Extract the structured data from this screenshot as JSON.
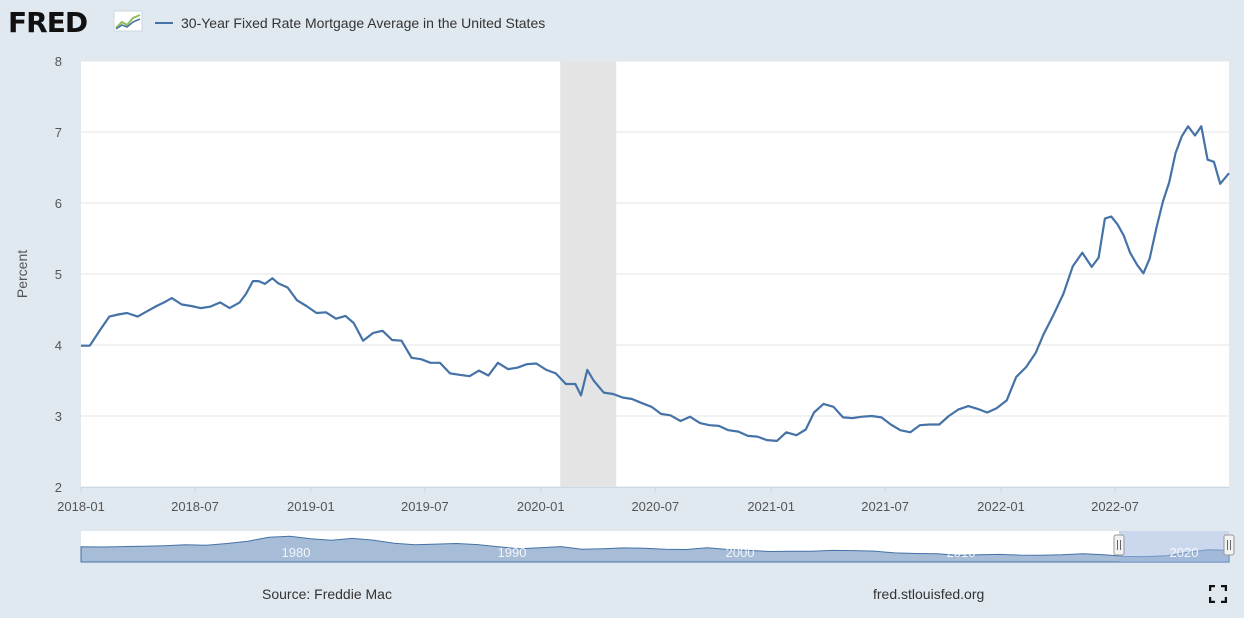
{
  "header": {
    "logo": "FRED",
    "logo_icon": "line-graph-icon",
    "legend_label": "30-Year Fixed Rate Mortgage Average in the United States"
  },
  "colors": {
    "series": "#4572a7",
    "plot_bg": "#ffffff",
    "page_bg": "#e1e9f0",
    "recession": "#e4e4e4",
    "navigator_fill": "#a7bcd6",
    "navigator_mask": "#9fb6df"
  },
  "chart_data": {
    "type": "line",
    "title": "30-Year Fixed Rate Mortgage Average in the United States",
    "xlabel": "",
    "ylabel": "Percent",
    "ylim": [
      2,
      8
    ],
    "yticks": [
      2,
      3,
      4,
      5,
      6,
      7,
      8
    ],
    "xlim": [
      "2018-01-01",
      "2022-12-29"
    ],
    "xtick_labels": [
      "2018-01",
      "2018-07",
      "2019-01",
      "2019-07",
      "2020-01",
      "2020-07",
      "2021-01",
      "2021-07",
      "2022-01",
      "2022-07"
    ],
    "grid": true,
    "legend_position": "top-left",
    "recession_band": [
      "2020-02-01",
      "2020-04-30"
    ],
    "series": [
      {
        "name": "30-Year Fixed Rate Mortgage Average in the United States",
        "x": [
          "2018-01-01",
          "2018-01-15",
          "2018-02-01",
          "2018-02-15",
          "2018-03-01",
          "2018-03-15",
          "2018-04-01",
          "2018-04-15",
          "2018-05-01",
          "2018-05-15",
          "2018-05-25",
          "2018-06-10",
          "2018-06-25",
          "2018-07-10",
          "2018-07-25",
          "2018-08-10",
          "2018-08-25",
          "2018-09-10",
          "2018-09-20",
          "2018-10-01",
          "2018-10-10",
          "2018-10-20",
          "2018-11-01",
          "2018-11-10",
          "2018-11-25",
          "2018-12-10",
          "2018-12-25",
          "2019-01-10",
          "2019-01-25",
          "2019-02-10",
          "2019-02-25",
          "2019-03-10",
          "2019-03-25",
          "2019-04-10",
          "2019-04-25",
          "2019-05-10",
          "2019-05-25",
          "2019-06-10",
          "2019-06-25",
          "2019-07-10",
          "2019-07-25",
          "2019-08-10",
          "2019-08-25",
          "2019-09-10",
          "2019-09-25",
          "2019-10-10",
          "2019-10-25",
          "2019-11-10",
          "2019-11-25",
          "2019-12-10",
          "2019-12-25",
          "2020-01-10",
          "2020-01-25",
          "2020-02-10",
          "2020-02-25",
          "2020-03-05",
          "2020-03-15",
          "2020-03-25",
          "2020-04-10",
          "2020-04-25",
          "2020-05-10",
          "2020-05-25",
          "2020-06-10",
          "2020-06-25",
          "2020-07-10",
          "2020-07-25",
          "2020-08-10",
          "2020-08-25",
          "2020-09-10",
          "2020-09-25",
          "2020-10-10",
          "2020-10-25",
          "2020-11-10",
          "2020-11-25",
          "2020-12-10",
          "2020-12-25",
          "2021-01-10",
          "2021-01-25",
          "2021-02-10",
          "2021-02-25",
          "2021-03-10",
          "2021-03-25",
          "2021-04-10",
          "2021-04-25",
          "2021-05-10",
          "2021-05-25",
          "2021-06-10",
          "2021-06-25",
          "2021-07-10",
          "2021-07-25",
          "2021-08-10",
          "2021-08-25",
          "2021-09-10",
          "2021-09-25",
          "2021-10-10",
          "2021-10-25",
          "2021-11-10",
          "2021-11-25",
          "2021-12-10",
          "2021-12-25",
          "2022-01-10",
          "2022-01-25",
          "2022-02-10",
          "2022-02-25",
          "2022-03-10",
          "2022-03-25",
          "2022-04-10",
          "2022-04-25",
          "2022-05-10",
          "2022-05-25",
          "2022-06-05",
          "2022-06-15",
          "2022-06-25",
          "2022-07-05",
          "2022-07-15",
          "2022-07-25",
          "2022-08-05",
          "2022-08-15",
          "2022-08-25",
          "2022-09-05",
          "2022-09-15",
          "2022-09-25",
          "2022-10-05",
          "2022-10-15",
          "2022-10-25",
          "2022-11-05",
          "2022-11-15",
          "2022-11-25",
          "2022-12-05",
          "2022-12-15",
          "2022-12-29"
        ],
        "values": [
          3.99,
          3.99,
          4.22,
          4.4,
          4.43,
          4.45,
          4.4,
          4.47,
          4.55,
          4.61,
          4.66,
          4.57,
          4.55,
          4.52,
          4.54,
          4.6,
          4.52,
          4.6,
          4.72,
          4.9,
          4.9,
          4.86,
          4.94,
          4.87,
          4.81,
          4.63,
          4.55,
          4.45,
          4.46,
          4.37,
          4.41,
          4.31,
          4.06,
          4.17,
          4.2,
          4.07,
          4.06,
          3.82,
          3.8,
          3.75,
          3.75,
          3.6,
          3.58,
          3.56,
          3.64,
          3.57,
          3.75,
          3.66,
          3.68,
          3.73,
          3.74,
          3.65,
          3.6,
          3.45,
          3.45,
          3.29,
          3.65,
          3.5,
          3.33,
          3.31,
          3.26,
          3.24,
          3.18,
          3.13,
          3.03,
          3.01,
          2.93,
          2.99,
          2.9,
          2.87,
          2.86,
          2.8,
          2.78,
          2.72,
          2.71,
          2.66,
          2.65,
          2.77,
          2.73,
          2.81,
          3.05,
          3.17,
          3.13,
          2.98,
          2.97,
          2.99,
          3.0,
          2.98,
          2.88,
          2.8,
          2.77,
          2.87,
          2.88,
          2.88,
          3.0,
          3.09,
          3.14,
          3.1,
          3.05,
          3.11,
          3.22,
          3.55,
          3.69,
          3.89,
          4.16,
          4.42,
          4.72,
          5.11,
          5.3,
          5.1,
          5.23,
          5.78,
          5.81,
          5.7,
          5.54,
          5.3,
          5.13,
          5.01,
          5.22,
          5.66,
          6.02,
          6.29,
          6.7,
          6.94,
          7.08,
          6.95,
          7.08,
          6.61,
          6.58,
          6.27,
          6.42
        ]
      }
    ],
    "navigator": {
      "xtick_labels": [
        "1980",
        "1990",
        "2000",
        "2010",
        "2020"
      ]
    }
  },
  "footer": {
    "source": "Source: Freddie Mac",
    "link": "fred.stlouisfed.org",
    "fullscreen_icon": "fullscreen-icon"
  }
}
